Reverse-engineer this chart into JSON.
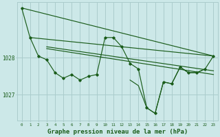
{
  "background_color": "#cce8e8",
  "plot_bg_color": "#cce8e8",
  "grid_color": "#aacccc",
  "line_color": "#1a5c1a",
  "xlabel": "Graphe pression niveau de la mer (hPa)",
  "xlabel_fontsize": 6.5,
  "ytick_labels": [
    "1027",
    "1028"
  ],
  "ytick_values": [
    1027.0,
    1028.0
  ],
  "ylim": [
    1026.3,
    1029.5
  ],
  "xlim": [
    -0.5,
    23.5
  ],
  "xtick_labels": [
    "0",
    "1",
    "2",
    "3",
    "4",
    "5",
    "6",
    "7",
    "8",
    "9",
    "10",
    "11",
    "12",
    "13",
    "14",
    "15",
    "16",
    "17",
    "18",
    "19",
    "20",
    "21",
    "22",
    "23"
  ],
  "straight_lines": [
    [
      [
        0,
        1029.35
      ],
      [
        23,
        1028.05
      ]
    ],
    [
      [
        1,
        1028.55
      ],
      [
        23,
        1028.05
      ]
    ],
    [
      [
        3,
        1028.3
      ],
      [
        23,
        1027.65
      ]
    ],
    [
      [
        3,
        1028.25
      ],
      [
        23,
        1027.55
      ]
    ]
  ],
  "zigzag_series": [
    {
      "x": [
        0,
        1,
        2,
        3,
        4,
        5,
        6,
        7,
        8,
        9,
        10,
        11,
        12,
        13,
        14,
        15,
        16,
        17,
        18,
        19,
        20,
        21,
        22,
        23
      ],
      "y": [
        1029.35,
        1028.55,
        1028.05,
        1027.95,
        1027.6,
        1027.45,
        1027.55,
        1027.4,
        1027.5,
        1027.55,
        1028.55,
        1028.55,
        1028.3,
        1027.85,
        1027.7,
        1026.65,
        1026.5,
        1027.35,
        1027.3,
        1027.75,
        1027.6,
        1027.6,
        1027.7,
        1028.05
      ],
      "has_markers": true
    },
    {
      "x": [
        13,
        14,
        15,
        16,
        17,
        18,
        19,
        20,
        21,
        22
      ],
      "y": [
        1027.4,
        1027.25,
        1026.65,
        1026.5,
        1027.35,
        1027.3,
        1027.75,
        1027.6,
        1027.6,
        1027.7
      ],
      "has_markers": false
    }
  ]
}
